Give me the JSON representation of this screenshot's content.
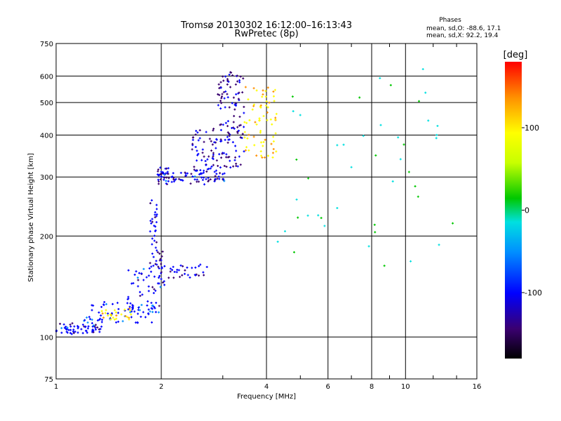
{
  "chart_data": {
    "type": "scatter",
    "title": "Tromsø 20130302 16:12:00–16:13:43",
    "subtitle": "RwPretec (8p)",
    "xlabel": "Frequency [MHz]",
    "ylabel": "Stationary phase Virtual Height [km]",
    "xscale": "log",
    "yscale": "log",
    "xlim": [
      1,
      16
    ],
    "ylim": [
      75,
      750
    ],
    "xticks": [
      1,
      2,
      4,
      6,
      8,
      10,
      16
    ],
    "xtick_labels": [
      "1",
      "2",
      "4",
      "6",
      "8",
      "10",
      "16"
    ],
    "yticks": [
      75,
      100,
      200,
      300,
      400,
      500,
      600,
      750
    ],
    "ytick_labels": [
      "75",
      "100",
      "200",
      "300",
      "400",
      "500",
      "600",
      "750"
    ],
    "grid": true,
    "phases_header": "Phases",
    "stats": [
      "mean, sd,O: -88.6, 17.1",
      "mean, sd,X: 92.2, 19.4"
    ],
    "colorbar": {
      "label": "[deg]",
      "range": [
        -180,
        180
      ],
      "ticks": [
        100,
        0,
        -100
      ],
      "tick_labels": [
        "100",
        "0",
        "-100"
      ],
      "colors": [
        "#000000",
        "#3a0070",
        "#0000ff",
        "#0090ff",
        "#00e0e0",
        "#00c800",
        "#c8ff00",
        "#ffff00",
        "#ff9000",
        "#ff0000"
      ]
    },
    "traces": [
      {
        "name_hint": "",
        "x0": 1.0,
        "x1": 1.35,
        "y0": 102,
        "y1": 110,
        "n": 60,
        "phase": -95
      },
      {
        "name_hint": "",
        "x0": 1.2,
        "x1": 1.9,
        "y0": 110,
        "y1": 128,
        "n": 70,
        "phase": -85
      },
      {
        "name_hint": "",
        "x0": 1.35,
        "x1": 1.65,
        "y0": 112,
        "y1": 122,
        "n": 25,
        "phase": 95
      },
      {
        "name_hint": "",
        "x0": 1.6,
        "x1": 2.0,
        "y0": 118,
        "y1": 160,
        "n": 45,
        "phase": -90
      },
      {
        "name_hint": "",
        "x0": 1.85,
        "x1": 1.95,
        "y0": 160,
        "y1": 260,
        "n": 35,
        "phase": -100
      },
      {
        "name_hint": "",
        "x0": 1.95,
        "x1": 2.05,
        "y0": 140,
        "y1": 185,
        "n": 20,
        "phase": -95
      },
      {
        "name_hint": "",
        "x0": 2.1,
        "x1": 2.75,
        "y0": 150,
        "y1": 165,
        "n": 30,
        "phase": -100
      },
      {
        "name_hint": "",
        "x0": 1.95,
        "x1": 2.1,
        "y0": 285,
        "y1": 320,
        "n": 35,
        "phase": -95
      },
      {
        "name_hint": "",
        "x0": 2.1,
        "x1": 3.1,
        "y0": 285,
        "y1": 310,
        "n": 60,
        "phase": -95
      },
      {
        "name_hint": "",
        "x0": 2.45,
        "x1": 2.9,
        "y0": 310,
        "y1": 420,
        "n": 60,
        "phase": -105
      },
      {
        "name_hint": "",
        "x0": 2.9,
        "x1": 3.45,
        "y0": 320,
        "y1": 620,
        "n": 120,
        "phase": -110
      },
      {
        "name_hint": "",
        "x0": 3.45,
        "x1": 4.3,
        "y0": 340,
        "y1": 560,
        "n": 70,
        "phase": 100
      },
      {
        "name_hint": "",
        "x0": 4.3,
        "x1": 14,
        "y0": 160,
        "y1": 640,
        "n": 45,
        "phase": 0
      }
    ]
  }
}
